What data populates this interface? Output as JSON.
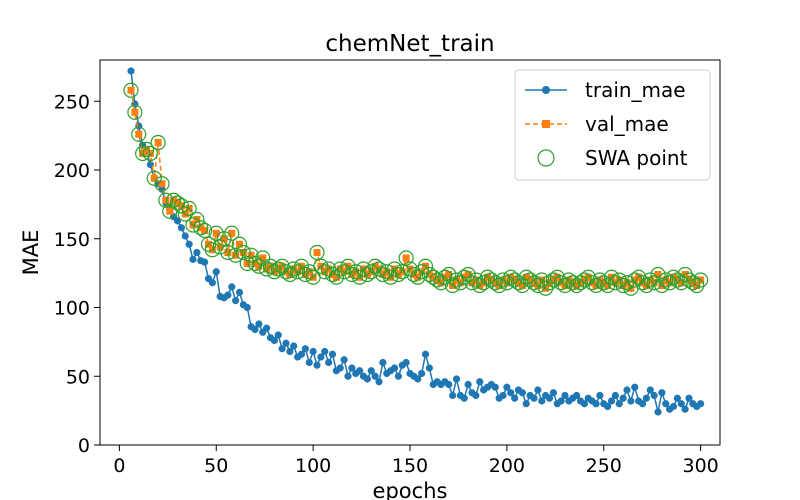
{
  "chart_data": {
    "type": "line",
    "title": "chemNet_train",
    "xlabel": "epochs",
    "ylabel": "MAE",
    "xlim": [
      -10,
      310
    ],
    "ylim": [
      0,
      280
    ],
    "xticks": [
      0,
      50,
      100,
      150,
      200,
      250,
      300
    ],
    "yticks": [
      0,
      50,
      100,
      150,
      200,
      250
    ],
    "grid": false,
    "legend_position": "top-right",
    "series": [
      {
        "name": "train_mae",
        "color": "#1f77b4",
        "marker": "circle",
        "linestyle": "solid",
        "x": [
          6,
          8,
          10,
          12,
          14,
          16,
          18,
          20,
          22,
          24,
          26,
          28,
          30,
          32,
          34,
          36,
          38,
          40,
          42,
          44,
          46,
          48,
          50,
          52,
          54,
          56,
          58,
          60,
          62,
          64,
          66,
          68,
          70,
          72,
          74,
          76,
          78,
          80,
          82,
          84,
          86,
          88,
          90,
          92,
          94,
          96,
          98,
          100,
          102,
          104,
          106,
          108,
          110,
          112,
          114,
          116,
          118,
          120,
          122,
          124,
          126,
          128,
          130,
          132,
          134,
          136,
          138,
          140,
          142,
          144,
          146,
          148,
          150,
          152,
          154,
          156,
          158,
          160,
          162,
          164,
          166,
          168,
          170,
          172,
          174,
          176,
          178,
          180,
          182,
          184,
          186,
          188,
          190,
          192,
          194,
          196,
          198,
          200,
          202,
          204,
          206,
          208,
          210,
          212,
          214,
          216,
          218,
          220,
          222,
          224,
          226,
          228,
          230,
          232,
          234,
          236,
          238,
          240,
          242,
          244,
          246,
          248,
          250,
          252,
          254,
          256,
          258,
          260,
          262,
          264,
          266,
          268,
          270,
          272,
          274,
          276,
          278,
          280,
          282,
          284,
          286,
          288,
          290,
          292,
          294,
          296,
          298,
          300
        ],
        "y": [
          272,
          248,
          232,
          218,
          214,
          204,
          194,
          190,
          186,
          176,
          172,
          166,
          163,
          158,
          152,
          146,
          135,
          140,
          134,
          133,
          121,
          118,
          126,
          108,
          107,
          109,
          115,
          105,
          111,
          102,
          100,
          86,
          84,
          88,
          82,
          85,
          78,
          76,
          80,
          70,
          74,
          68,
          72,
          64,
          66,
          70,
          60,
          68,
          58,
          64,
          68,
          60,
          66,
          54,
          56,
          62,
          50,
          56,
          52,
          54,
          50,
          48,
          54,
          50,
          46,
          60,
          52,
          54,
          56,
          50,
          58,
          60,
          52,
          50,
          48,
          52,
          66,
          56,
          44,
          46,
          44,
          46,
          44,
          36,
          48,
          36,
          34,
          44,
          38,
          36,
          46,
          40,
          42,
          44,
          42,
          34,
          36,
          42,
          38,
          34,
          40,
          38,
          30,
          36,
          34,
          40,
          32,
          36,
          34,
          38,
          30,
          32,
          36,
          32,
          34,
          36,
          32,
          30,
          34,
          32,
          30,
          36,
          30,
          28,
          32,
          36,
          30,
          34,
          40,
          32,
          42,
          32,
          30,
          34,
          40,
          36,
          24,
          38,
          30,
          26,
          28,
          34,
          30,
          26,
          34,
          30,
          28,
          30
        ]
      },
      {
        "name": "val_mae",
        "color": "#ff7f0e",
        "marker": "square",
        "linestyle": "dashed",
        "x": [
          6,
          8,
          10,
          12,
          14,
          16,
          18,
          20,
          22,
          24,
          26,
          28,
          30,
          32,
          34,
          36,
          38,
          40,
          42,
          44,
          46,
          48,
          50,
          52,
          54,
          56,
          58,
          60,
          62,
          64,
          66,
          68,
          70,
          72,
          74,
          76,
          78,
          80,
          82,
          84,
          86,
          88,
          90,
          92,
          94,
          96,
          98,
          100,
          102,
          104,
          106,
          108,
          110,
          112,
          114,
          116,
          118,
          120,
          122,
          124,
          126,
          128,
          130,
          132,
          134,
          136,
          138,
          140,
          142,
          144,
          146,
          148,
          150,
          152,
          154,
          156,
          158,
          160,
          162,
          164,
          166,
          168,
          170,
          172,
          174,
          176,
          178,
          180,
          182,
          184,
          186,
          188,
          190,
          192,
          194,
          196,
          198,
          200,
          202,
          204,
          206,
          208,
          210,
          212,
          214,
          216,
          218,
          220,
          222,
          224,
          226,
          228,
          230,
          232,
          234,
          236,
          238,
          240,
          242,
          244,
          246,
          248,
          250,
          252,
          254,
          256,
          258,
          260,
          262,
          264,
          266,
          268,
          270,
          272,
          274,
          276,
          278,
          280,
          282,
          284,
          286,
          288,
          290,
          292,
          294,
          296,
          298,
          300
        ],
        "y": [
          258,
          242,
          226,
          212,
          215,
          212,
          194,
          220,
          190,
          178,
          170,
          178,
          176,
          174,
          168,
          172,
          160,
          164,
          158,
          156,
          146,
          142,
          154,
          144,
          150,
          140,
          154,
          138,
          146,
          140,
          132,
          138,
          132,
          130,
          136,
          128,
          130,
          126,
          128,
          130,
          126,
          124,
          128,
          126,
          130,
          124,
          126,
          122,
          140,
          130,
          126,
          128,
          124,
          122,
          128,
          126,
          130,
          124,
          126,
          122,
          128,
          124,
          126,
          130,
          128,
          124,
          126,
          122,
          128,
          124,
          126,
          136,
          128,
          124,
          122,
          126,
          130,
          124,
          122,
          120,
          118,
          122,
          124,
          116,
          120,
          118,
          122,
          124,
          118,
          120,
          116,
          118,
          122,
          120,
          118,
          116,
          120,
          118,
          122,
          120,
          118,
          116,
          122,
          120,
          118,
          116,
          120,
          114,
          118,
          120,
          122,
          118,
          116,
          120,
          118,
          116,
          118,
          120,
          122,
          118,
          116,
          120,
          118,
          116,
          122,
          118,
          120,
          116,
          118,
          114,
          120,
          122,
          118,
          116,
          120,
          118,
          124,
          116,
          120,
          118,
          122,
          120,
          118,
          124,
          120,
          118,
          116,
          120
        ]
      },
      {
        "name": "SWA point",
        "color": "#2ca02c",
        "marker": "open-circle",
        "linestyle": "none",
        "follows": "val_mae"
      }
    ]
  }
}
